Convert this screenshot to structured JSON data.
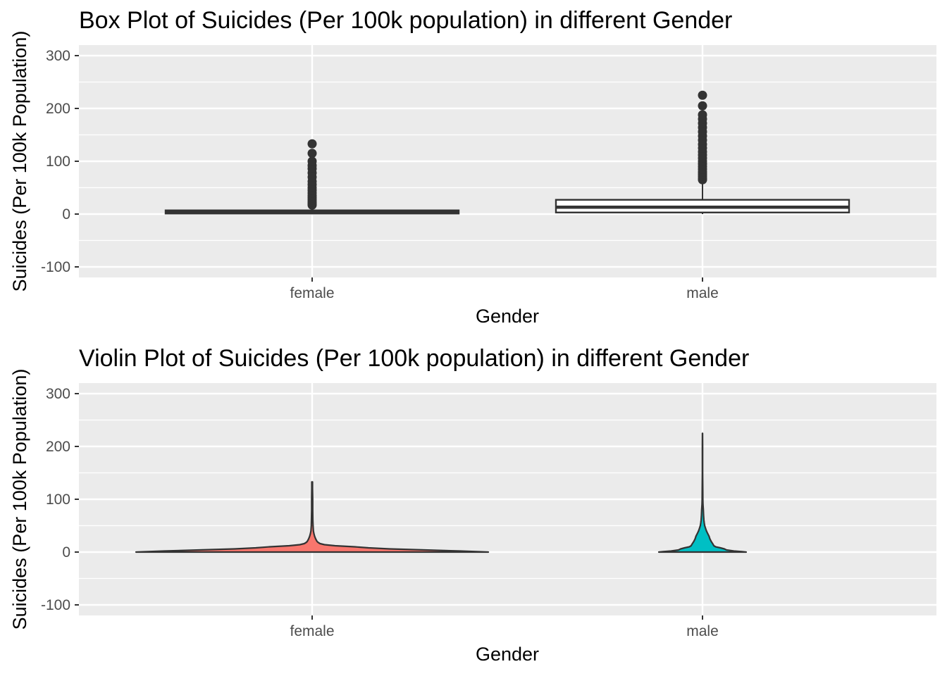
{
  "chart_data": [
    {
      "type": "box",
      "title": "Box Plot of Suicides (Per 100k population) in different Gender",
      "xlabel": "Gender",
      "ylabel": "Suicides (Per 100k Population)",
      "categories": [
        "female",
        "male"
      ],
      "ylim": [
        -120,
        320
      ],
      "yticks": [
        -100,
        0,
        100,
        200,
        300
      ],
      "grid": true,
      "series": [
        {
          "category": "female",
          "min": 0,
          "q1": 1,
          "median": 4,
          "q3": 7,
          "upper_whisker": 15,
          "outliers": [
            17,
            20,
            23,
            27,
            31,
            35,
            40,
            45,
            50,
            56,
            62,
            70,
            78,
            86,
            92,
            100,
            115,
            133
          ]
        },
        {
          "category": "male",
          "min": 0,
          "q1": 3,
          "median": 13,
          "q3": 27,
          "upper_whisker": 63,
          "outliers": [
            65,
            68,
            72,
            76,
            80,
            85,
            90,
            95,
            100,
            106,
            112,
            118,
            125,
            132,
            140,
            148,
            156,
            164,
            172,
            180,
            188,
            205,
            225
          ]
        }
      ]
    },
    {
      "type": "violin",
      "title": "Violin Plot of Suicides (Per 100k population) in different Gender",
      "xlabel": "Gender",
      "ylabel": "Suicides (Per 100k Population)",
      "categories": [
        "female",
        "male"
      ],
      "ylim": [
        -120,
        320
      ],
      "yticks": [
        -100,
        0,
        100,
        200,
        300
      ],
      "grid": true,
      "series": [
        {
          "category": "female",
          "color": "#F8766D",
          "profile": [
            [
              0,
              1.0
            ],
            [
              2,
              0.84
            ],
            [
              4,
              0.64
            ],
            [
              6,
              0.44
            ],
            [
              8,
              0.32
            ],
            [
              10,
              0.24
            ],
            [
              12,
              0.13
            ],
            [
              14,
              0.07
            ],
            [
              16,
              0.045
            ],
            [
              18,
              0.035
            ],
            [
              20,
              0.028
            ],
            [
              25,
              0.02
            ],
            [
              30,
              0.014
            ],
            [
              35,
              0.01
            ],
            [
              40,
              0.007
            ],
            [
              50,
              0.005
            ],
            [
              60,
              0.004
            ],
            [
              80,
              0.003
            ],
            [
              100,
              0.003
            ],
            [
              120,
              0.002
            ],
            [
              133,
              0.002
            ]
          ]
        },
        {
          "category": "male",
          "color": "#00BFC4",
          "profile": [
            [
              0,
              1.0
            ],
            [
              1,
              0.9
            ],
            [
              2,
              0.72
            ],
            [
              4,
              0.55
            ],
            [
              6,
              0.5
            ],
            [
              8,
              0.41
            ],
            [
              10,
              0.3
            ],
            [
              12,
              0.26
            ],
            [
              15,
              0.24
            ],
            [
              20,
              0.2
            ],
            [
              25,
              0.17
            ],
            [
              30,
              0.15
            ],
            [
              35,
              0.12
            ],
            [
              40,
              0.09
            ],
            [
              45,
              0.07
            ],
            [
              50,
              0.05
            ],
            [
              55,
              0.04
            ],
            [
              60,
              0.032
            ],
            [
              70,
              0.025
            ],
            [
              80,
              0.02
            ],
            [
              90,
              0.012
            ],
            [
              100,
              0.008
            ],
            [
              120,
              0.006
            ],
            [
              150,
              0.004
            ],
            [
              180,
              0.003
            ],
            [
              200,
              0.003
            ],
            [
              225,
              0.002
            ]
          ]
        }
      ]
    }
  ]
}
